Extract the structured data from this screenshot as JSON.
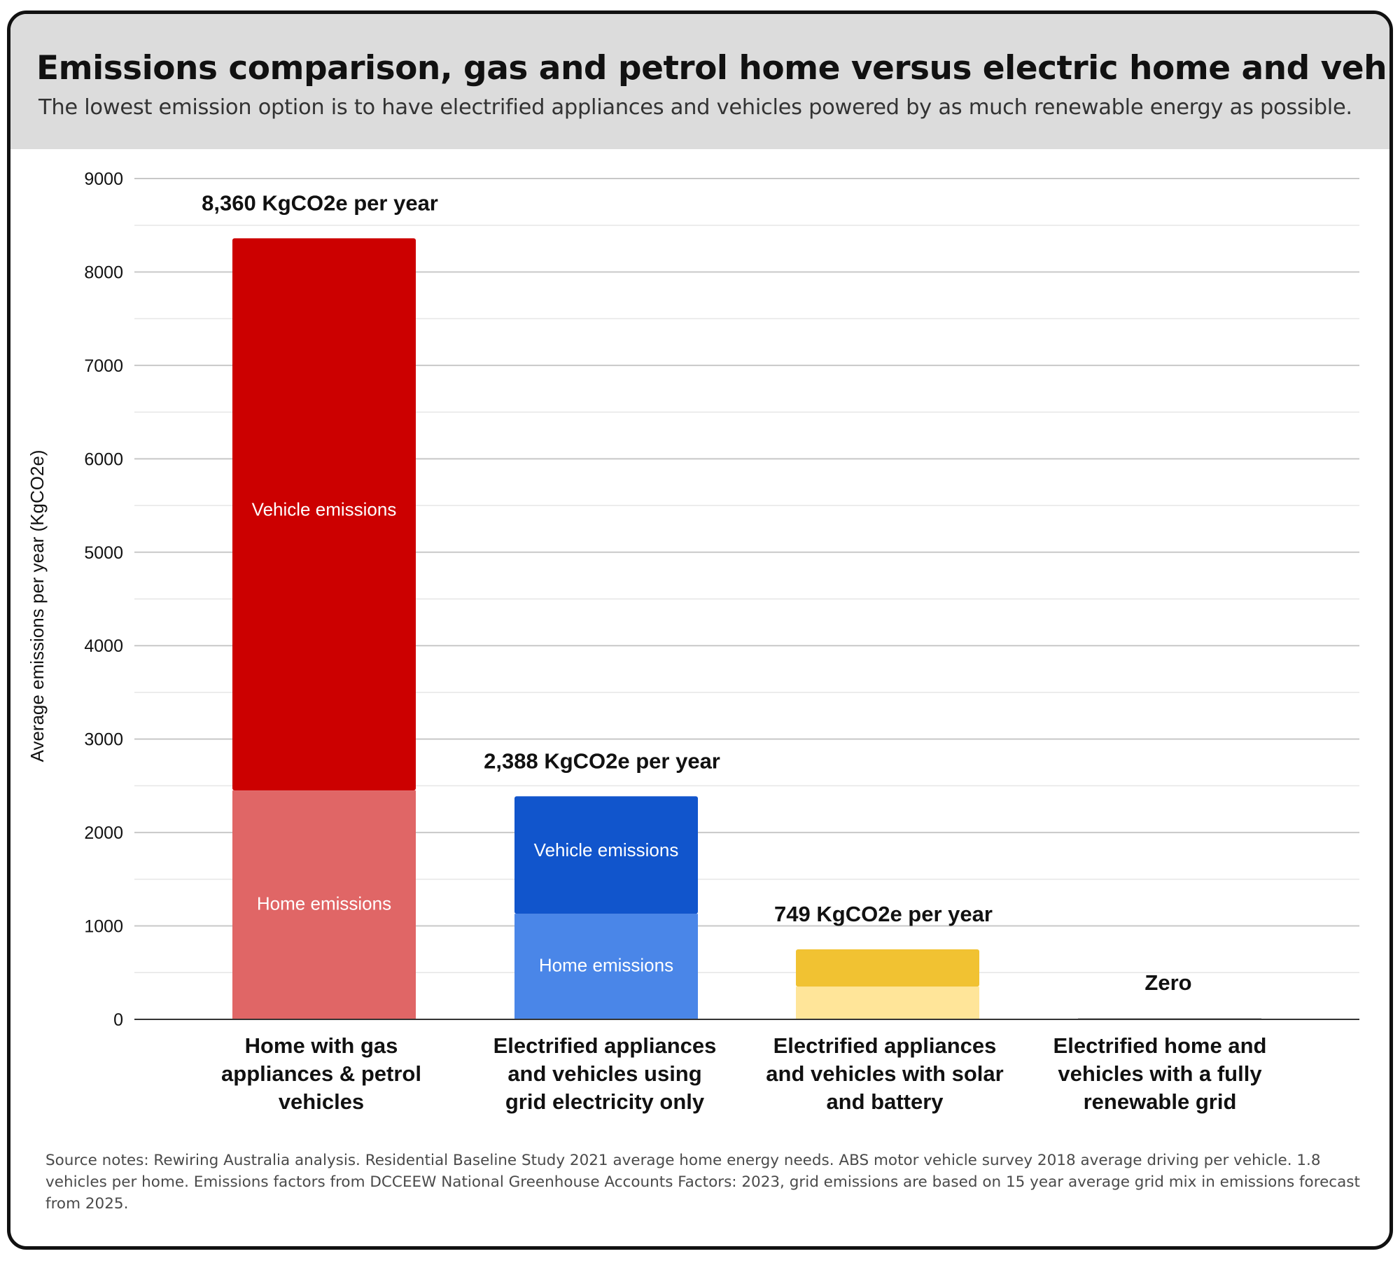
{
  "title": "Emissions comparison, gas and petrol home versus electric home and vehicles",
  "subtitle": "The lowest emission option is to have electrified appliances and vehicles powered by as much renewable energy as possible.",
  "source_notes": "Source notes: Rewiring Australia analysis. Residential Baseline Study 2021 average home energy needs. ABS motor vehicle survey 2018 average driving per vehicle. 1.8 vehicles per home. Emissions factors from DCCEEW National Greenhouse Accounts Factors: 2023, grid emissions are based on 15 year average grid mix in emissions forecast from 2025.",
  "chart_data": {
    "type": "bar",
    "stacked": true,
    "title": "Emissions comparison, gas and petrol home versus electric home and vehicles",
    "xlabel": "",
    "ylabel": "Average emissions per year (KgCO2e)",
    "ylim": [
      0,
      9000
    ],
    "yticks": [
      0,
      1000,
      2000,
      3000,
      4000,
      5000,
      6000,
      7000,
      8000,
      9000
    ],
    "grid": true,
    "categories": [
      [
        "Home with gas",
        "appliances & petrol",
        "vehicles"
      ],
      [
        "Electrified appliances",
        "and vehicles using",
        "grid electricity only"
      ],
      [
        "Electrified appliances",
        "and vehicles with solar",
        "and battery"
      ],
      [
        "Electrified home and",
        "vehicles with a fully",
        "renewable grid"
      ]
    ],
    "series": [
      {
        "name": "Home emissions",
        "values": [
          2450,
          1130,
          350,
          0
        ],
        "colors": [
          "#e06666",
          "#4a86e8",
          "#ffe599",
          "#ffe599"
        ],
        "labels": [
          "Home emissions",
          "Home emissions",
          "",
          ""
        ]
      },
      {
        "name": "Vehicle emissions",
        "values": [
          5910,
          1258,
          399,
          0
        ],
        "colors": [
          "#cc0000",
          "#1155cc",
          "#f1c232",
          "#f1c232"
        ],
        "labels": [
          "Vehicle emissions",
          "Vehicle emissions",
          "",
          ""
        ]
      }
    ],
    "totals": [
      8360,
      2388,
      749,
      0
    ],
    "total_labels": [
      "8,360 KgCO2e per year",
      "2,388 KgCO2e per year",
      "749 KgCO2e per year",
      "Zero"
    ]
  }
}
